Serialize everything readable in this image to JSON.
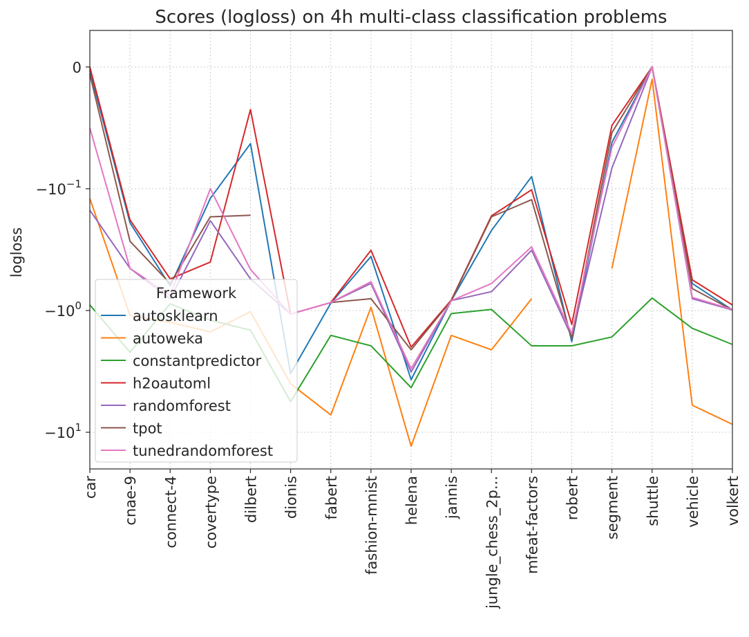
{
  "chart_data": {
    "type": "line",
    "title": "Scores (logloss) on 4h multi-class classification problems",
    "xlabel": "",
    "ylabel": "logloss",
    "yscale": "symlog",
    "ylim": [
      -20,
      0.03
    ],
    "yticks": [
      {
        "value": 0,
        "label": "0"
      },
      {
        "value": -0.1,
        "label": "−10",
        "sup": "−1"
      },
      {
        "value": -1,
        "label": "−10",
        "sup": "0"
      },
      {
        "value": -10,
        "label": "−10",
        "sup": "1"
      }
    ],
    "grid": true,
    "legend": {
      "title": "Framework",
      "placement": "lower-left"
    },
    "categories": [
      "car",
      "cnae-9",
      "connect-4",
      "covertype",
      "dilbert",
      "dionis",
      "fabert",
      "fashion-mnist",
      "helena",
      "jannis",
      "jungle_chess_2p...",
      "mfeat-factors",
      "robert",
      "segment",
      "shuttle",
      "vehicle",
      "volkert"
    ],
    "series": [
      {
        "name": "autosklearn",
        "color": "#1f77b4",
        "values": [
          -0.003,
          -0.19,
          -0.63,
          -0.12,
          -0.063,
          -3.3,
          -0.87,
          -0.36,
          -3.7,
          -0.83,
          -0.22,
          -0.09,
          -1.8,
          -0.062,
          0.0,
          -0.6,
          -0.99
        ]
      },
      {
        "name": "autoweka",
        "color": "#ff7f0e",
        "values": [
          -0.12,
          -1.1,
          -1.25,
          -1.5,
          -1.02,
          -4.0,
          -7.2,
          -0.94,
          -13.0,
          -1.6,
          -2.1,
          -0.8,
          null,
          -0.45,
          -0.01,
          -6.0,
          -8.6
        ]
      },
      {
        "name": "constantpredictor",
        "color": "#2ca02c",
        "values": [
          -0.9,
          -2.2,
          -0.88,
          -1.2,
          -1.45,
          -5.6,
          -1.6,
          -1.95,
          -4.3,
          -1.06,
          -0.98,
          -1.95,
          -1.95,
          -1.65,
          -0.79,
          -1.4,
          -1.9
        ]
      },
      {
        "name": "h2oautoml",
        "color": "#d62728",
        "values": [
          0.0,
          -0.18,
          -0.55,
          -0.4,
          -0.035,
          -1.07,
          -0.86,
          -0.32,
          -2.0,
          -0.82,
          -0.167,
          -0.102,
          -1.3,
          -0.048,
          0.0,
          -0.56,
          -0.9
        ]
      },
      {
        "name": "randomforest",
        "color": "#9467bd",
        "values": [
          -0.15,
          -0.45,
          -0.8,
          -0.183,
          -0.55,
          -1.07,
          -0.86,
          -0.6,
          -3.2,
          -0.83,
          -0.7,
          -0.32,
          -1.65,
          -0.083,
          0.0,
          -0.8,
          -0.99
        ]
      },
      {
        "name": "tpot",
        "color": "#8c564b",
        "values": [
          -0.006,
          -0.27,
          -0.6,
          -0.17,
          -0.165,
          null,
          -0.86,
          -0.8,
          -2.1,
          -0.83,
          -0.17,
          -0.123,
          -1.7,
          -0.054,
          0.0,
          -0.66,
          -0.99
        ]
      },
      {
        "name": "tunedrandomforest",
        "color": "#e377c2",
        "values": [
          -0.05,
          -0.45,
          -0.75,
          -0.1,
          -0.46,
          -1.07,
          -0.86,
          -0.58,
          -3.0,
          -0.83,
          -0.6,
          -0.3,
          -1.55,
          -0.066,
          0.0,
          -0.78,
          -0.98
        ]
      }
    ]
  }
}
